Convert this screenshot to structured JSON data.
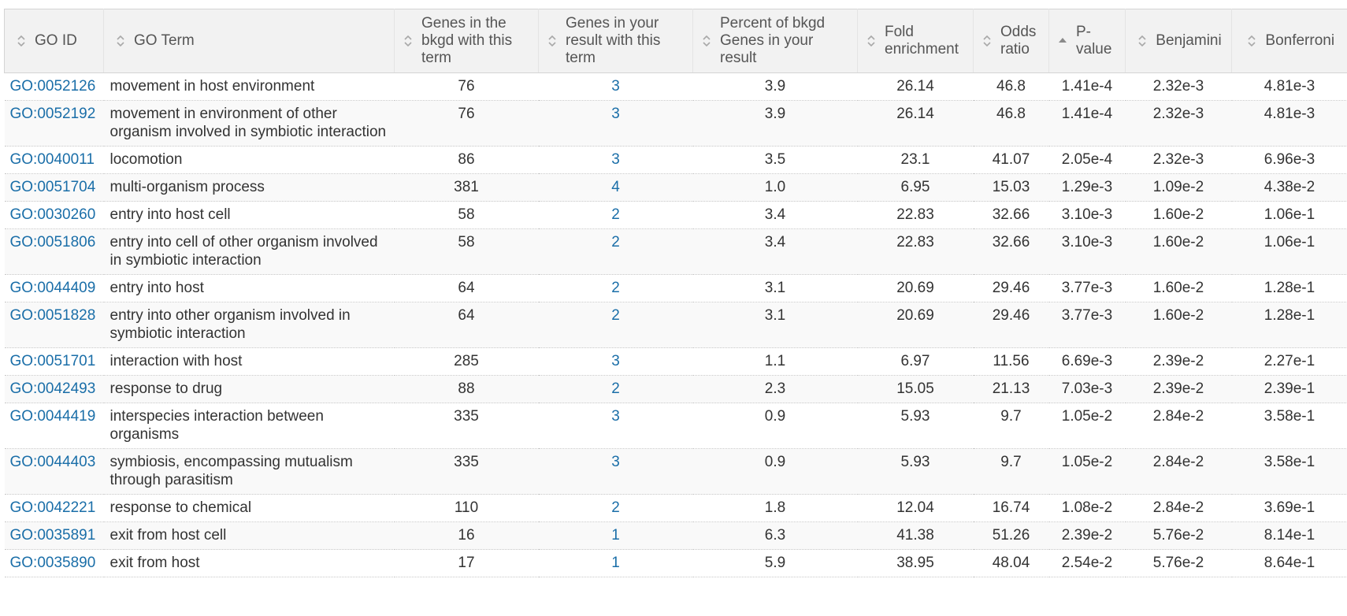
{
  "table": {
    "headers": [
      {
        "label": "GO ID",
        "sort": "unsorted"
      },
      {
        "label": "GO Term",
        "sort": "unsorted"
      },
      {
        "label": "Genes in the bkgd with this term",
        "sort": "unsorted"
      },
      {
        "label": "Genes in your result with this term",
        "sort": "unsorted"
      },
      {
        "label": "Percent of bkgd Genes in your result",
        "sort": "unsorted"
      },
      {
        "label": "Fold enrichment",
        "sort": "unsorted"
      },
      {
        "label": "Odds ratio",
        "sort": "unsorted"
      },
      {
        "label": "P-value",
        "sort": "ascending"
      },
      {
        "label": "Benjamini",
        "sort": "unsorted"
      },
      {
        "label": "Bonferroni",
        "sort": "unsorted"
      }
    ],
    "rows": [
      [
        "GO:0052126",
        "movement in host environment",
        "76",
        "3",
        "3.9",
        "26.14",
        "46.8",
        "1.41e-4",
        "2.32e-3",
        "4.81e-3"
      ],
      [
        "GO:0052192",
        "movement in environment of other organism involved in symbiotic interaction",
        "76",
        "3",
        "3.9",
        "26.14",
        "46.8",
        "1.41e-4",
        "2.32e-3",
        "4.81e-3"
      ],
      [
        "GO:0040011",
        "locomotion",
        "86",
        "3",
        "3.5",
        "23.1",
        "41.07",
        "2.05e-4",
        "2.32e-3",
        "6.96e-3"
      ],
      [
        "GO:0051704",
        "multi-organism process",
        "381",
        "4",
        "1.0",
        "6.95",
        "15.03",
        "1.29e-3",
        "1.09e-2",
        "4.38e-2"
      ],
      [
        "GO:0030260",
        "entry into host cell",
        "58",
        "2",
        "3.4",
        "22.83",
        "32.66",
        "3.10e-3",
        "1.60e-2",
        "1.06e-1"
      ],
      [
        "GO:0051806",
        "entry into cell of other organism involved in symbiotic interaction",
        "58",
        "2",
        "3.4",
        "22.83",
        "32.66",
        "3.10e-3",
        "1.60e-2",
        "1.06e-1"
      ],
      [
        "GO:0044409",
        "entry into host",
        "64",
        "2",
        "3.1",
        "20.69",
        "29.46",
        "3.77e-3",
        "1.60e-2",
        "1.28e-1"
      ],
      [
        "GO:0051828",
        "entry into other organism involved in symbiotic interaction",
        "64",
        "2",
        "3.1",
        "20.69",
        "29.46",
        "3.77e-3",
        "1.60e-2",
        "1.28e-1"
      ],
      [
        "GO:0051701",
        "interaction with host",
        "285",
        "3",
        "1.1",
        "6.97",
        "11.56",
        "6.69e-3",
        "2.39e-2",
        "2.27e-1"
      ],
      [
        "GO:0042493",
        "response to drug",
        "88",
        "2",
        "2.3",
        "15.05",
        "21.13",
        "7.03e-3",
        "2.39e-2",
        "2.39e-1"
      ],
      [
        "GO:0044419",
        "interspecies interaction between organisms",
        "335",
        "3",
        "0.9",
        "5.93",
        "9.7",
        "1.05e-2",
        "2.84e-2",
        "3.58e-1"
      ],
      [
        "GO:0044403",
        "symbiosis, encompassing mutualism through parasitism",
        "335",
        "3",
        "0.9",
        "5.93",
        "9.7",
        "1.05e-2",
        "2.84e-2",
        "3.58e-1"
      ],
      [
        "GO:0042221",
        "response to chemical",
        "110",
        "2",
        "1.8",
        "12.04",
        "16.74",
        "1.08e-2",
        "2.84e-2",
        "3.69e-1"
      ],
      [
        "GO:0035891",
        "exit from host cell",
        "16",
        "1",
        "6.3",
        "41.38",
        "51.26",
        "2.39e-2",
        "5.76e-2",
        "8.14e-1"
      ],
      [
        "GO:0035890",
        "exit from host",
        "17",
        "1",
        "5.9",
        "38.95",
        "48.04",
        "2.54e-2",
        "5.76e-2",
        "8.64e-1"
      ]
    ]
  }
}
